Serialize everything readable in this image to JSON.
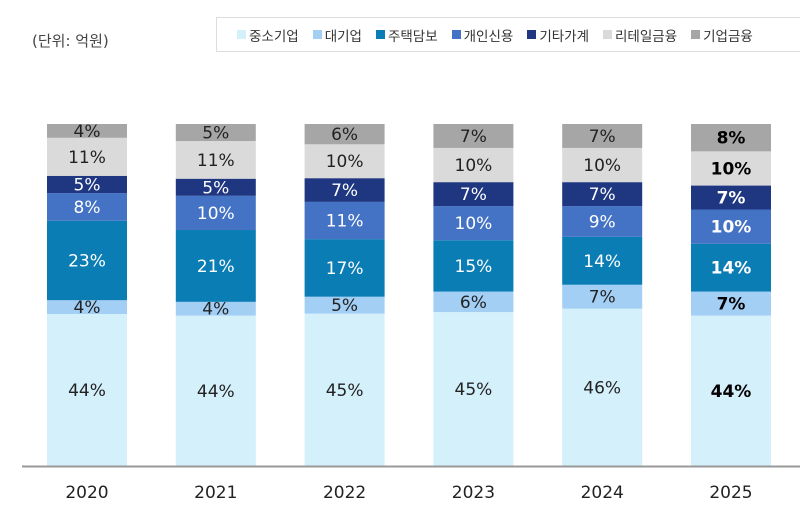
{
  "chart_data": {
    "type": "bar",
    "stacked": true,
    "unit_label": "(단위: 억원)",
    "categories": [
      "2020",
      "2021",
      "2022",
      "2023",
      "2024",
      "2025"
    ],
    "highlight_category": "2025",
    "legend_position": "top-right",
    "grid": false,
    "series": [
      {
        "name": "중소기업",
        "color": "#d4f0fb",
        "label_color": "#222",
        "values": [
          44,
          44,
          45,
          45,
          46,
          44
        ]
      },
      {
        "name": "대기업",
        "color": "#a3cff5",
        "label_color": "#222",
        "values": [
          4,
          4,
          5,
          6,
          7,
          7
        ]
      },
      {
        "name": "주택담보",
        "color": "#0a7db5",
        "label_color": "#ffffff",
        "values": [
          23,
          21,
          17,
          15,
          14,
          14
        ]
      },
      {
        "name": "개인신용",
        "color": "#4472c4",
        "label_color": "#ffffff",
        "values": [
          8,
          10,
          11,
          10,
          9,
          10
        ]
      },
      {
        "name": "기타가계",
        "color": "#1f3781",
        "label_color": "#ffffff",
        "values": [
          5,
          5,
          7,
          7,
          7,
          7
        ]
      },
      {
        "name": "리테일금융",
        "color": "#dadada",
        "label_color": "#222",
        "values": [
          11,
          11,
          10,
          10,
          10,
          10
        ]
      },
      {
        "name": "기업금융",
        "color": "#a6a6a6",
        "label_color": "#222",
        "values": [
          4,
          5,
          6,
          7,
          7,
          8
        ]
      }
    ]
  }
}
